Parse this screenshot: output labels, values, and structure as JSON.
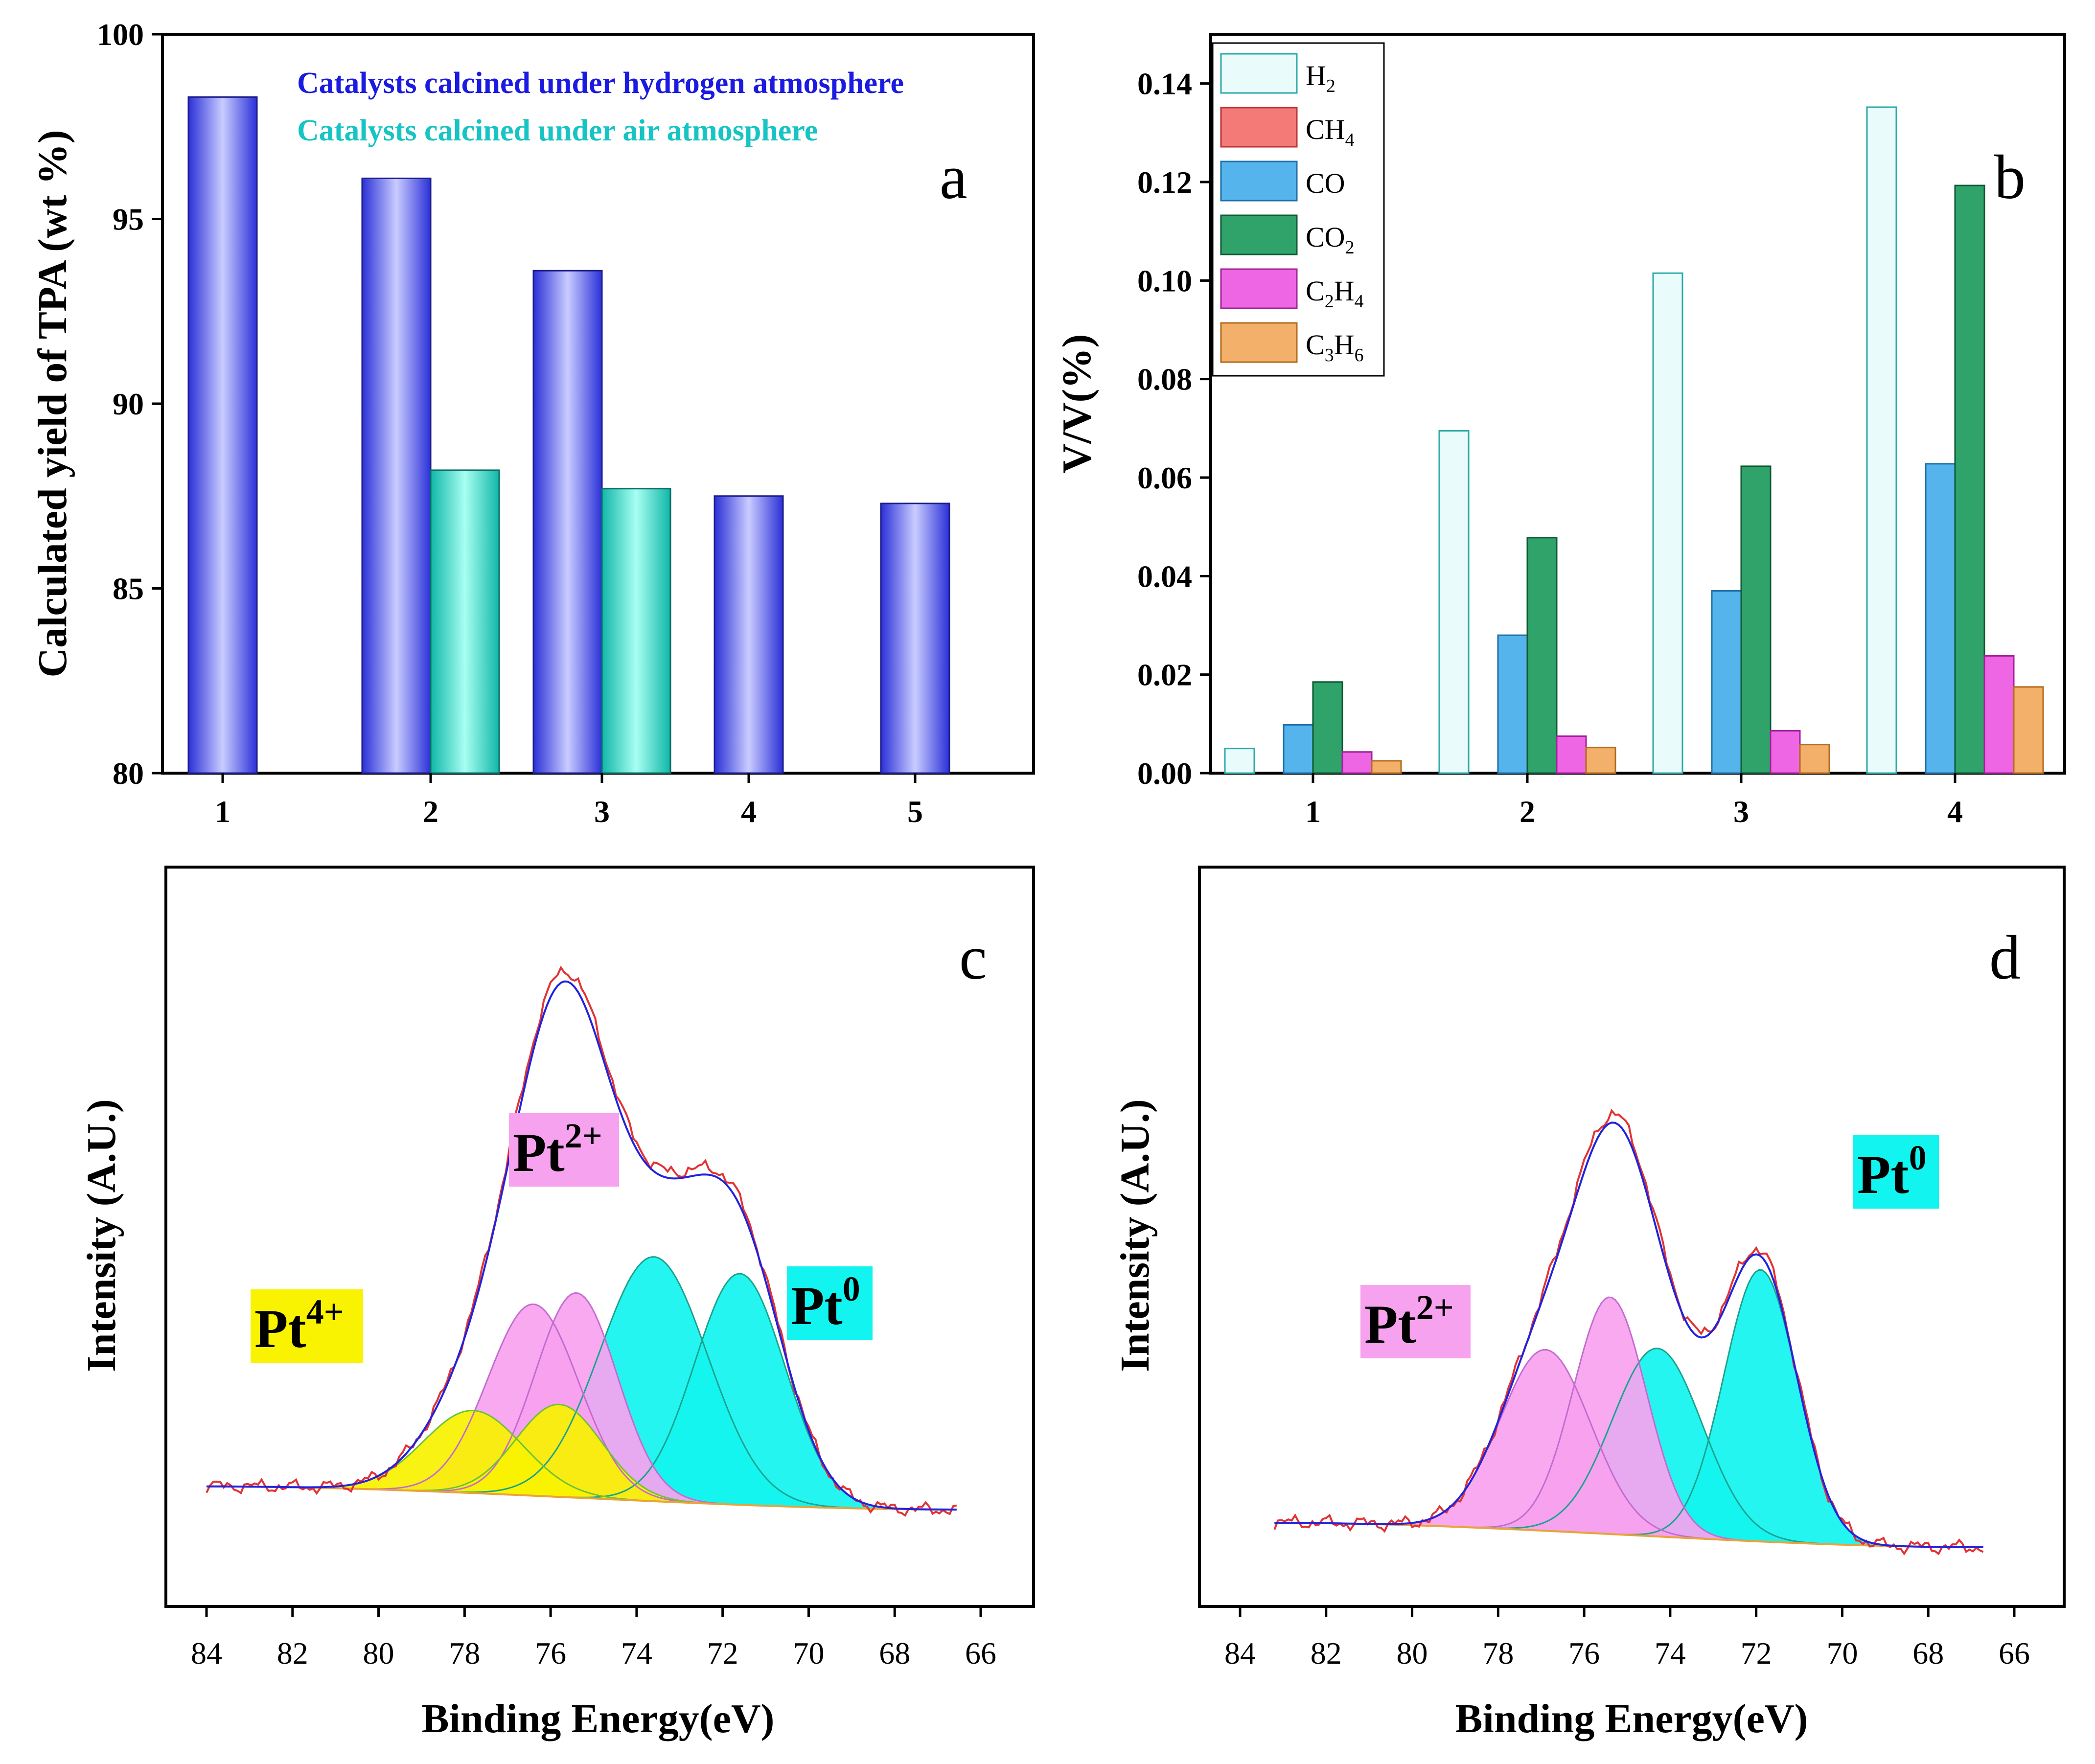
{
  "colors": {
    "hydrogen_bar": "#8e93ef",
    "air_bar": "#3fdccc",
    "legend_hydrogen_text": "#1a1ae0",
    "legend_air_text": "#17c4c4",
    "H2": "#e9fbfb",
    "CH4": "#f47a78",
    "CO": "#56b4ec",
    "CO2": "#2fa36a",
    "C2H4": "#ef66e4",
    "C3H6": "#f2b06a",
    "pt0_fill": "#12f4f0",
    "pt2_fill": "#f7a2ef",
    "pt4_fill": "#f9f200",
    "envelope": "#2222dd",
    "raw_data": "#e23333",
    "baseline": "#e8a33a"
  },
  "chart_data": [
    {
      "panel": "a",
      "type": "bar",
      "panel_label": "a",
      "ylabel": "Calculated yield of TPA (wt %)",
      "xlabel": "",
      "ylim": [
        80,
        100
      ],
      "yticks": [
        "80",
        "85",
        "90",
        "95",
        "100"
      ],
      "categories": [
        "1",
        "2",
        "3",
        "4",
        "5"
      ],
      "series": [
        {
          "name": "Catalysts calcined under hydrogen atmosphere",
          "values": [
            98.3,
            96.1,
            93.6,
            87.5,
            87.3
          ]
        },
        {
          "name": "Catalysts calcined under air atmosphere",
          "values": [
            null,
            88.2,
            87.7,
            null,
            null
          ]
        }
      ]
    },
    {
      "panel": "b",
      "type": "bar",
      "panel_label": "b",
      "ylabel": "V/V(%)",
      "xlabel": "",
      "ylim": [
        0,
        0.15
      ],
      "yticks": [
        "0.00",
        "0.02",
        "0.04",
        "0.06",
        "0.08",
        "0.10",
        "0.12",
        "0.14"
      ],
      "categories": [
        "1",
        "2",
        "3",
        "4"
      ],
      "series": [
        {
          "name": "H2",
          "main": "H",
          "sub": "2",
          "values": [
            0.005,
            0.0695,
            0.1015,
            0.1352
          ]
        },
        {
          "name": "CH4",
          "main": "CH",
          "sub": "4",
          "values": [
            0,
            0,
            0,
            0
          ]
        },
        {
          "name": "CO",
          "main": "CO",
          "sub": "",
          "values": [
            0.0098,
            0.028,
            0.037,
            0.0628
          ]
        },
        {
          "name": "CO2",
          "main": "CO",
          "sub": "2",
          "values": [
            0.0185,
            0.0478,
            0.0623,
            0.1193
          ]
        },
        {
          "name": "C2H4",
          "main": "C",
          "sub": "2",
          "main2": "H",
          "sub2": "4",
          "values": [
            0.0043,
            0.0075,
            0.0086,
            0.0238
          ]
        },
        {
          "name": "C3H6",
          "main": "C",
          "sub": "3",
          "main2": "H",
          "sub2": "6",
          "values": [
            0.0025,
            0.0052,
            0.0058,
            0.0175
          ]
        }
      ]
    },
    {
      "panel": "c",
      "type": "line",
      "panel_label": "c",
      "xlabel": "Binding Energy(eV)",
      "ylabel": "Intensity (A.U.)",
      "xlim": [
        85,
        65
      ],
      "xticks": [
        "84",
        "82",
        "80",
        "78",
        "76",
        "74",
        "72",
        "70",
        "68",
        "66"
      ],
      "baseline": {
        "left": [
          84,
          0.07
        ],
        "right": [
          66.5,
          0
        ]
      },
      "peaks": [
        {
          "label": "Pt0",
          "center": 71.6,
          "sigma": 1.05,
          "height": 0.7,
          "fill": "pt0"
        },
        {
          "label": "Pt0",
          "center": 73.6,
          "sigma": 1.25,
          "height": 0.74,
          "fill": "pt0"
        },
        {
          "label": "Pt2+",
          "center": 75.4,
          "sigma": 0.95,
          "height": 0.62,
          "fill": "pt2"
        },
        {
          "label": "Pt2+",
          "center": 76.4,
          "sigma": 1.05,
          "height": 0.58,
          "fill": "pt2"
        },
        {
          "label": "Pt4+",
          "center": 75.8,
          "sigma": 1.0,
          "height": 0.28,
          "fill": "pt4"
        },
        {
          "label": "Pt4+",
          "center": 77.8,
          "sigma": 1.15,
          "height": 0.25,
          "fill": "pt4"
        }
      ],
      "annotations": [
        {
          "main": "Pt",
          "sup": "4+",
          "fill": "pt4"
        },
        {
          "main": "Pt",
          "sup": "2+",
          "fill": "pt2"
        },
        {
          "main": "Pt",
          "sup": "0",
          "fill": "pt0"
        }
      ]
    },
    {
      "panel": "d",
      "type": "line",
      "panel_label": "d",
      "xlabel": "Binding Energy(eV)",
      "ylabel": "Intensity (A.U.)",
      "xlim": [
        85,
        65
      ],
      "xticks": [
        "84",
        "82",
        "80",
        "78",
        "76",
        "74",
        "72",
        "70",
        "68",
        "66"
      ],
      "baseline": {
        "left": [
          83.2,
          0.07
        ],
        "right": [
          66.7,
          0
        ]
      },
      "peaks": [
        {
          "label": "Pt0",
          "center": 71.9,
          "sigma": 0.85,
          "height": 0.78,
          "fill": "pt0"
        },
        {
          "label": "Pt0",
          "center": 74.3,
          "sigma": 1.05,
          "height": 0.54,
          "fill": "pt0"
        },
        {
          "label": "Pt2+",
          "center": 75.4,
          "sigma": 0.85,
          "height": 0.68,
          "fill": "pt2"
        },
        {
          "label": "Pt2+",
          "center": 76.9,
          "sigma": 1.05,
          "height": 0.52,
          "fill": "pt2"
        }
      ],
      "annotations": [
        {
          "main": "Pt",
          "sup": "2+",
          "fill": "pt2"
        },
        {
          "main": "Pt",
          "sup": "0",
          "fill": "pt0"
        }
      ]
    }
  ]
}
